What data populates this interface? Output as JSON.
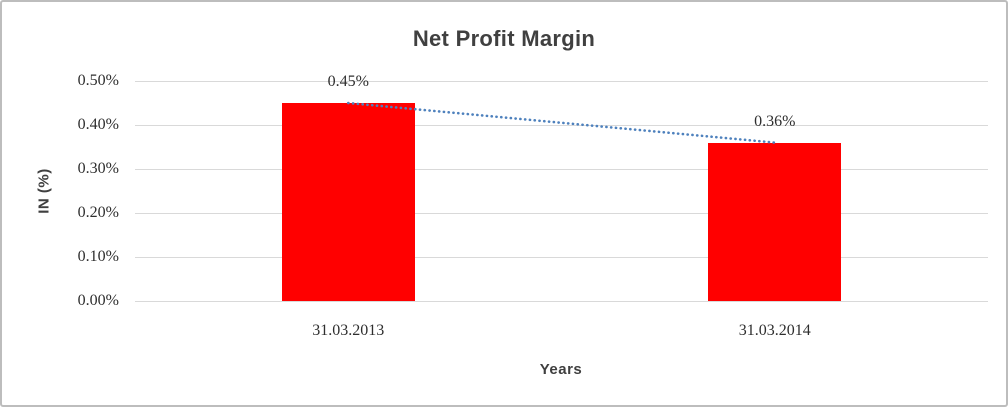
{
  "chart_data": {
    "type": "bar",
    "title": "Net Profit Margin",
    "xlabel": "Years",
    "ylabel": "IN (%)",
    "categories": [
      "31.03.2013",
      "31.03.2014"
    ],
    "values": [
      0.45,
      0.36
    ],
    "data_labels": [
      "0.45%",
      "0.36%"
    ],
    "y_ticks": [
      "0.50%",
      "0.40%",
      "0.30%",
      "0.20%",
      "0.10%",
      "0.00%"
    ],
    "ylim": [
      0,
      0.5
    ],
    "grid": true,
    "legend": "none",
    "bar_color": "#FF0000",
    "trendline_color": "#4E81BD",
    "trendline_style": "dotted",
    "gridline_color": "#D9D9D9",
    "title_color": "#404040",
    "tick_color": "#2e2e2e"
  }
}
